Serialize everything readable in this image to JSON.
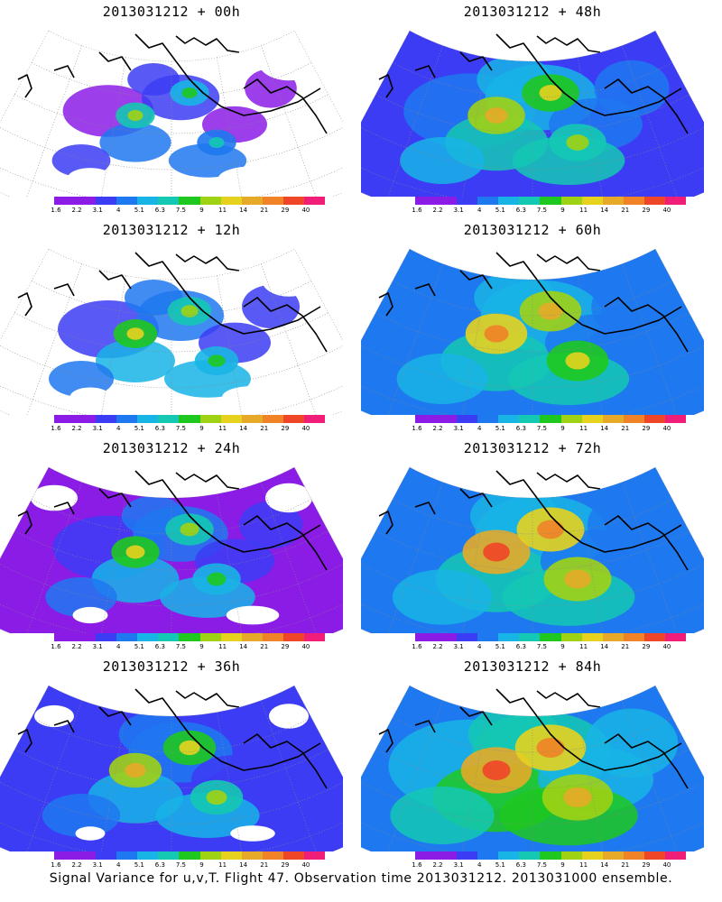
{
  "panels": [
    {
      "title": "2013031212 + 00h",
      "intensity": 0.15
    },
    {
      "title": "2013031212 + 48h",
      "intensity": 0.55
    },
    {
      "title": "2013031212 + 12h",
      "intensity": 0.25
    },
    {
      "title": "2013031212 + 60h",
      "intensity": 0.65
    },
    {
      "title": "2013031212 + 24h",
      "intensity": 0.35
    },
    {
      "title": "2013031212 + 72h",
      "intensity": 0.78
    },
    {
      "title": "2013031212 + 36h",
      "intensity": 0.45
    },
    {
      "title": "2013031212 + 84h",
      "intensity": 0.85
    }
  ],
  "colorbar": {
    "labels": [
      "1.6",
      "2.2",
      "3.1",
      "4",
      "5.1",
      "6.3",
      "7.5",
      "9",
      "11",
      "14",
      "21",
      "29",
      "40"
    ],
    "colors": [
      "#8b1ce6",
      "#8b1ce6",
      "#3c3cf5",
      "#1e78f0",
      "#18b4e6",
      "#14c8b4",
      "#1ec81e",
      "#a0d214",
      "#e6d21e",
      "#e6aa28",
      "#f08228",
      "#f04628",
      "#f01e78"
    ]
  },
  "footer": "Signal Variance for u,v,T. Flight 47. Observation time 2013031212. 2013031000 ensemble."
}
